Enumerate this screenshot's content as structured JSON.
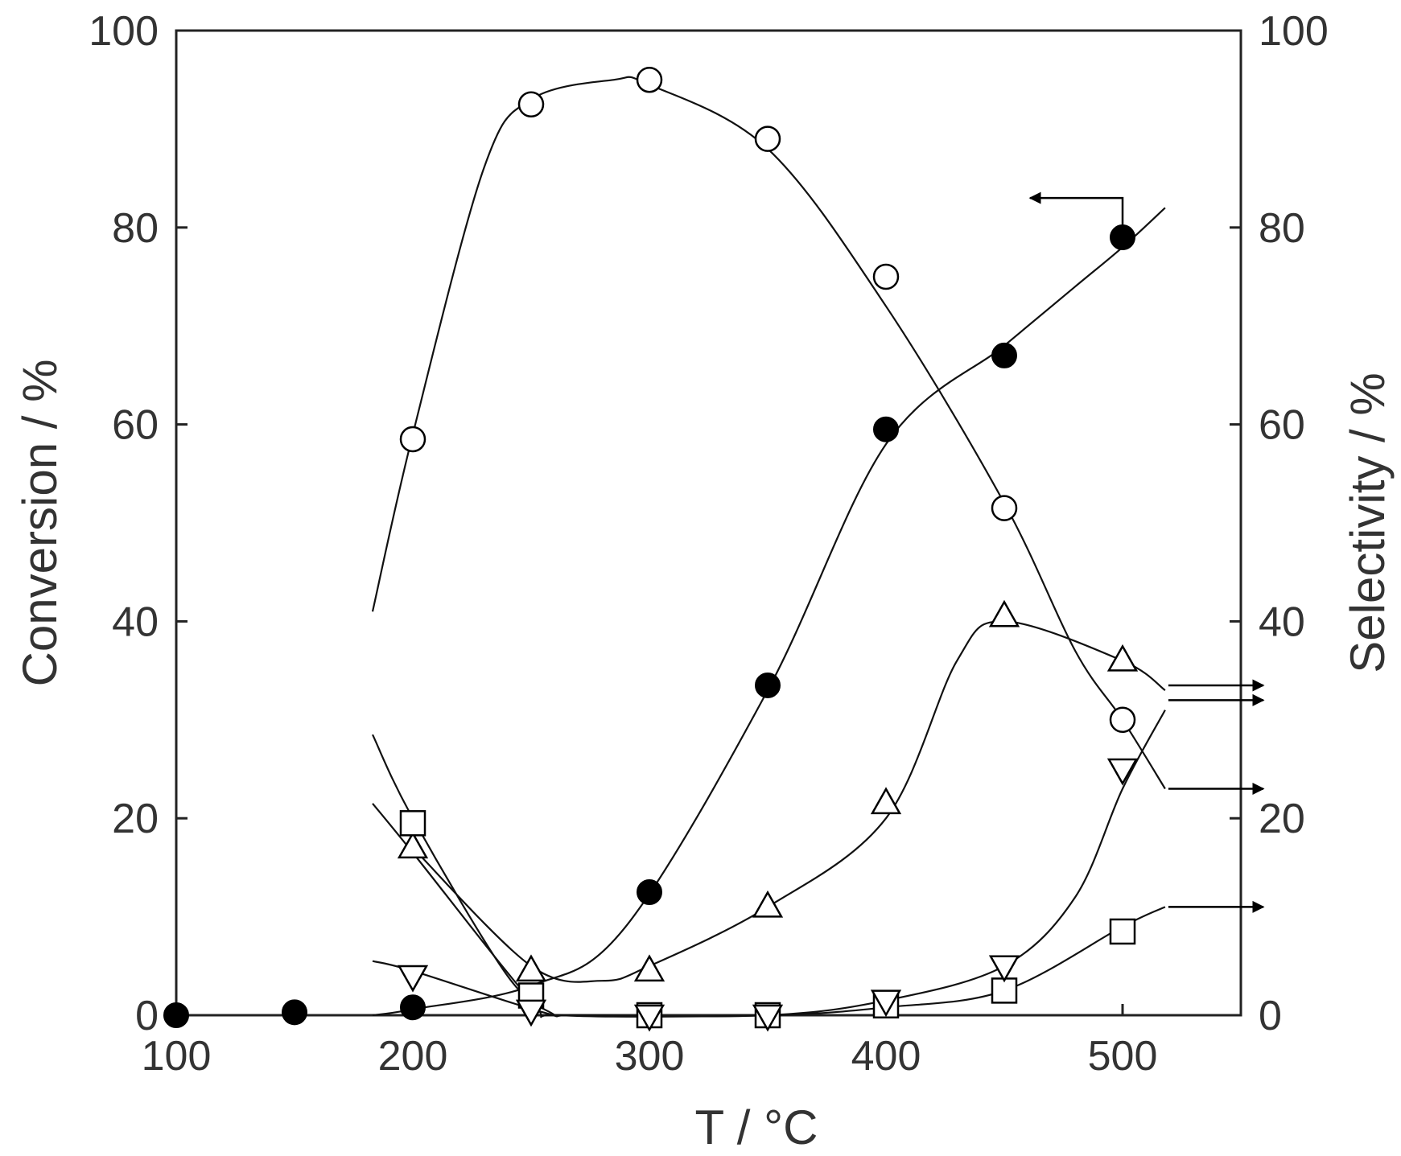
{
  "chart_data": {
    "type": "scatter",
    "title": "",
    "xlabel": "T / °C",
    "ylabel_left": "Conversion / %",
    "ylabel_right": "Selectivity / %",
    "xlim": [
      100,
      550
    ],
    "ylim_left": [
      0,
      100
    ],
    "ylim_right": [
      0,
      100
    ],
    "xticks": [
      "100",
      "200",
      "300",
      "400",
      "500"
    ],
    "yticks_left": [
      "0",
      "20",
      "40",
      "60",
      "80",
      "100"
    ],
    "yticks_right": [
      "0",
      "20",
      "40",
      "60",
      "80",
      "100"
    ],
    "grid": false,
    "legend": "none",
    "series": [
      {
        "axis": "left",
        "marker": "filled-circle",
        "x": [
          100,
          150,
          200,
          300,
          350,
          400,
          450,
          500
        ],
        "y": [
          0,
          0.3,
          0.8,
          12.5,
          33.5,
          59.5,
          67,
          79
        ]
      },
      {
        "axis": "right",
        "marker": "open-circle",
        "x": [
          200,
          250,
          300,
          350,
          400,
          450,
          500
        ],
        "y": [
          58.5,
          92.5,
          95,
          89,
          75,
          51.5,
          30
        ]
      },
      {
        "axis": "right",
        "marker": "open-triangle-up",
        "x": [
          200,
          250,
          300,
          350,
          400,
          450,
          500
        ],
        "y": [
          17,
          4.5,
          4.5,
          11,
          21.5,
          40.5,
          36
        ]
      },
      {
        "axis": "right",
        "marker": "open-square",
        "x": [
          200,
          250,
          300,
          350,
          400,
          450,
          500
        ],
        "y": [
          19.5,
          2,
          0,
          0,
          1,
          2.5,
          8.5
        ]
      },
      {
        "axis": "right",
        "marker": "open-triangle-down",
        "x": [
          200,
          250,
          300,
          350,
          400,
          450,
          500
        ],
        "y": [
          4,
          0.5,
          0,
          0,
          1.5,
          5,
          25
        ]
      }
    ],
    "fit_curves": [
      {
        "x": [
          183,
          200,
          250,
          290,
          350,
          400,
          450,
          480,
          500,
          518
        ],
        "y": [
          0,
          0.6,
          3,
          9,
          33,
          58,
          68,
          74,
          78,
          82
        ]
      },
      {
        "x": [
          183,
          200,
          230,
          250,
          285,
          300,
          350,
          400,
          450,
          480,
          500,
          518
        ],
        "y": [
          41,
          59,
          86,
          93,
          95,
          94.5,
          88,
          72,
          52,
          37,
          30,
          23
        ]
      },
      {
        "x": [
          200,
          250,
          280,
          300,
          350,
          400,
          430,
          450,
          500,
          518
        ],
        "y": [
          17,
          5,
          3.5,
          5,
          11,
          20,
          36,
          40,
          36,
          33
        ]
      },
      {
        "x": [
          183,
          200,
          240,
          260
        ],
        "y": [
          28.5,
          20,
          4,
          0
        ]
      },
      {
        "x": [
          183,
          200,
          250,
          263,
          350,
          400,
          450,
          500,
          518
        ],
        "y": [
          21.5,
          16.5,
          1.5,
          0,
          0,
          0.8,
          2.5,
          9,
          11
        ]
      },
      {
        "x": [
          183,
          200,
          255,
          270,
          350,
          400,
          450,
          480,
          500,
          518
        ],
        "y": [
          5.5,
          4.5,
          0.3,
          0,
          0,
          1.5,
          5,
          12,
          23,
          31
        ]
      }
    ],
    "annotations": [
      {
        "type": "arrow",
        "direction": "left",
        "target_axis": "left",
        "near_x": 500,
        "near_y": 83
      },
      {
        "type": "arrow",
        "direction": "right",
        "target_axis": "right",
        "near_y": 33.5
      },
      {
        "type": "arrow",
        "direction": "right",
        "target_axis": "right",
        "near_y": 32
      },
      {
        "type": "arrow",
        "direction": "right",
        "target_axis": "right",
        "near_y": 23
      },
      {
        "type": "arrow",
        "direction": "right",
        "target_axis": "right",
        "near_y": 11
      }
    ]
  }
}
